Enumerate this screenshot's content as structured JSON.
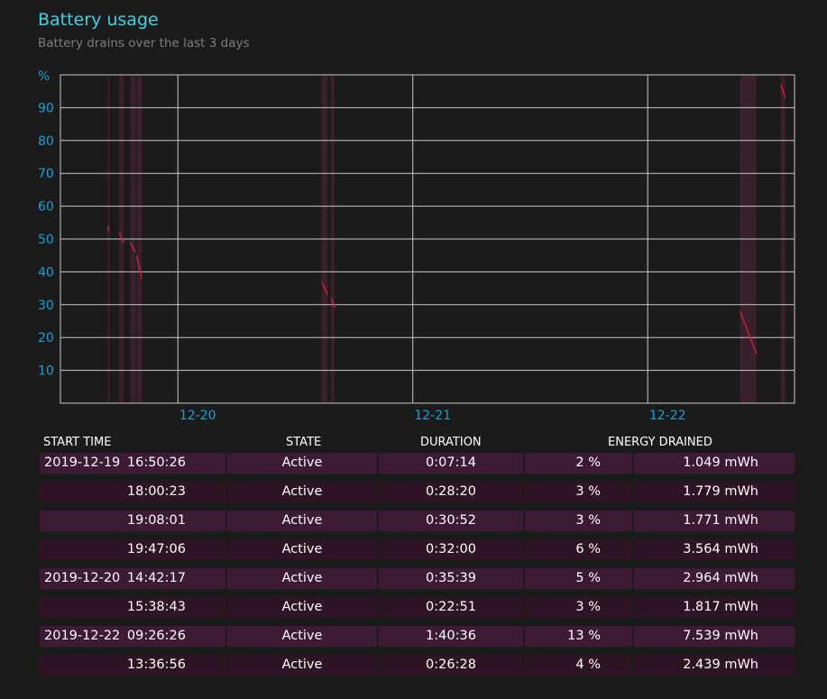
{
  "header": {
    "title": "Battery usage",
    "subtitle": "Battery drains over the last 3 days"
  },
  "chart_data": {
    "type": "line",
    "ylabel": "%",
    "ylim": [
      0,
      100
    ],
    "y_ticks": [
      10,
      20,
      30,
      40,
      50,
      60,
      70,
      80,
      90
    ],
    "x_ticks": [
      "12-20",
      "12-21",
      "12-22"
    ],
    "x_range": [
      "2019-12-19 12:00",
      "2019-12-22 15:00"
    ],
    "grid": true,
    "series": [
      {
        "values": [
          {
            "x": "2019-12-19 16:50",
            "y": 54
          },
          {
            "x": "2019-12-19 16:57",
            "y": 52
          },
          {
            "x": "2019-12-19 18:00",
            "y": 52
          },
          {
            "x": "2019-12-19 18:28",
            "y": 49
          },
          {
            "x": "2019-12-19 19:08",
            "y": 49
          },
          {
            "x": "2019-12-19 19:39",
            "y": 46
          },
          {
            "x": "2019-12-19 19:47",
            "y": 45
          },
          {
            "x": "2019-12-19 20:19",
            "y": 38
          },
          {
            "x": "2019-12-20 14:42",
            "y": 37
          },
          {
            "x": "2019-12-20 15:18",
            "y": 33
          },
          {
            "x": "2019-12-20 15:38",
            "y": 32
          },
          {
            "x": "2019-12-20 16:01",
            "y": 29
          },
          {
            "x": "2019-12-22 09:26",
            "y": 28
          },
          {
            "x": "2019-12-22 11:07",
            "y": 15
          },
          {
            "x": "2019-12-22 13:36",
            "y": 97
          },
          {
            "x": "2019-12-22 14:03",
            "y": 93
          }
        ]
      }
    ],
    "active_periods": [
      {
        "start": "2019-12-19 16:50",
        "end": "2019-12-19 16:57"
      },
      {
        "start": "2019-12-19 18:00",
        "end": "2019-12-19 18:28"
      },
      {
        "start": "2019-12-19 19:08",
        "end": "2019-12-19 19:39"
      },
      {
        "start": "2019-12-19 19:47",
        "end": "2019-12-19 20:19"
      },
      {
        "start": "2019-12-20 14:42",
        "end": "2019-12-20 15:18"
      },
      {
        "start": "2019-12-20 15:38",
        "end": "2019-12-20 16:01"
      },
      {
        "start": "2019-12-22 09:26",
        "end": "2019-12-22 11:07"
      },
      {
        "start": "2019-12-22 13:36",
        "end": "2019-12-22 14:03"
      }
    ],
    "colors": {
      "line": "#c42434",
      "grid": "#c8c8c8",
      "tick": "#1aa1d9",
      "active_band": "#3a1f2c"
    }
  },
  "table": {
    "headers": {
      "start_time": "START TIME",
      "state": "STATE",
      "duration": "DURATION",
      "energy_drained": "ENERGY DRAINED"
    },
    "rows": [
      {
        "date": "2019-12-19",
        "time": "16:50:26",
        "state": "Active",
        "duration": "0:07:14",
        "percent": "2 %",
        "energy": "1.049 mWh"
      },
      {
        "date": "",
        "time": "18:00:23",
        "state": "Active",
        "duration": "0:28:20",
        "percent": "3 %",
        "energy": "1.779 mWh"
      },
      {
        "date": "",
        "time": "19:08:01",
        "state": "Active",
        "duration": "0:30:52",
        "percent": "3 %",
        "energy": "1.771 mWh"
      },
      {
        "date": "",
        "time": "19:47:06",
        "state": "Active",
        "duration": "0:32:00",
        "percent": "6 %",
        "energy": "3.564 mWh"
      },
      {
        "date": "2019-12-20",
        "time": "14:42:17",
        "state": "Active",
        "duration": "0:35:39",
        "percent": "5 %",
        "energy": "2.964 mWh"
      },
      {
        "date": "",
        "time": "15:38:43",
        "state": "Active",
        "duration": "0:22:51",
        "percent": "3 %",
        "energy": "1.817 mWh"
      },
      {
        "date": "2019-12-22",
        "time": "09:26:26",
        "state": "Active",
        "duration": "1:40:36",
        "percent": "13 %",
        "energy": "7.539 mWh"
      },
      {
        "date": "",
        "time": "13:36:56",
        "state": "Active",
        "duration": "0:26:28",
        "percent": "4 %",
        "energy": "2.439 mWh"
      }
    ]
  }
}
